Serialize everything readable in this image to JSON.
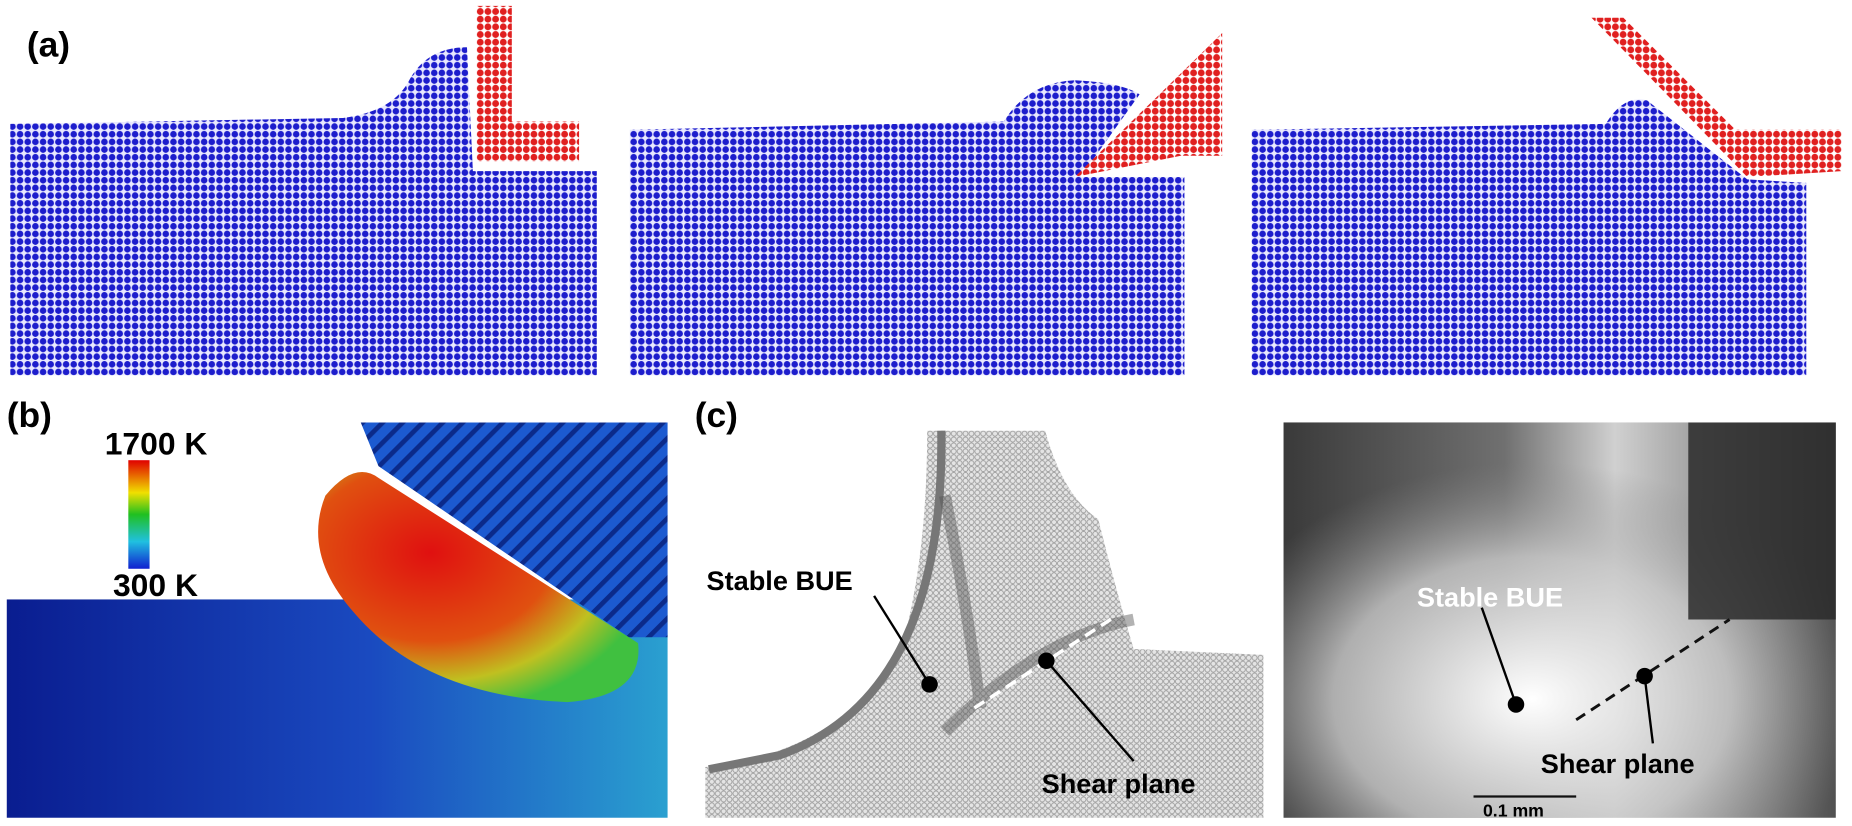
{
  "panels": {
    "a": {
      "label": "(a)"
    },
    "b": {
      "label": "(b)",
      "colorbar": {
        "max": "1700 K",
        "min": "300 K"
      }
    },
    "c": {
      "label": "(c)",
      "simulation": {
        "bue": "Stable BUE",
        "shear": "Shear plane"
      },
      "experiment": {
        "bue": "Stable BUE",
        "shear": "Shear plane",
        "scale": "0.1 mm"
      }
    }
  }
}
